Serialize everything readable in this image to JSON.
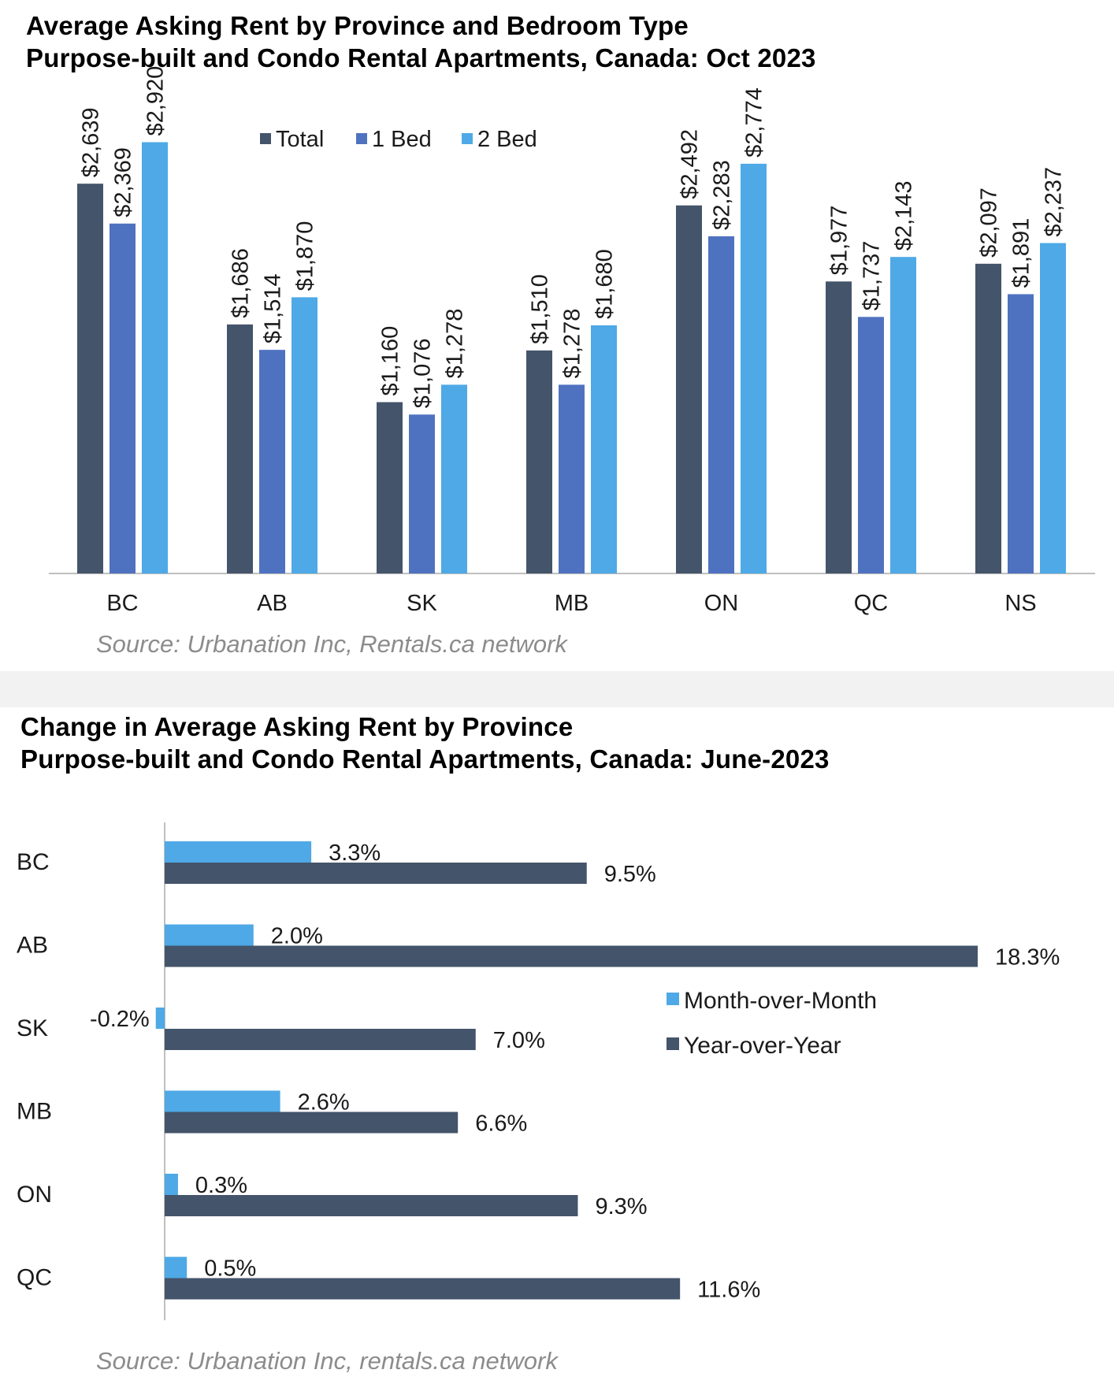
{
  "chart_data": [
    {
      "type": "bar",
      "title": "Average Asking Rent by Province and Bedroom Type",
      "subtitle": "Purpose-built and Condo Rental Apartments, Canada: Oct 2023",
      "source": "Source: Urbanation Inc, Rentals.ca network",
      "categories": [
        "BC",
        "AB",
        "SK",
        "MB",
        "ON",
        "QC",
        "NS"
      ],
      "series": [
        {
          "name": "Total",
          "color": "#44546a",
          "values": [
            2639,
            1686,
            1160,
            1510,
            2492,
            1977,
            2097
          ],
          "labels": [
            "$2,639",
            "$1,686",
            "$1,160",
            "$1,510",
            "$2,492",
            "$1,977",
            "$2,097"
          ]
        },
        {
          "name": "1 Bed",
          "color": "#4f72c0",
          "values": [
            2369,
            1514,
            1076,
            1278,
            2283,
            1737,
            1891
          ],
          "labels": [
            "$2,369",
            "$1,514",
            "$1,076",
            "$1,278",
            "$2,283",
            "$1,737",
            "$1,891"
          ]
        },
        {
          "name": "2 Bed",
          "color": "#4ea9e6",
          "values": [
            2920,
            1870,
            1278,
            1680,
            2774,
            2143,
            2237
          ],
          "labels": [
            "$2,920",
            "$1,870",
            "$1,278",
            "$1,680",
            "$2,774",
            "$2,143",
            "$2,237"
          ]
        }
      ],
      "ylim": [
        0,
        3200
      ],
      "legend": "top",
      "grid": false
    },
    {
      "type": "bar",
      "orientation": "horizontal",
      "title": "Change in Average Asking Rent by Province",
      "subtitle": "Purpose-built and Condo Rental Apartments, Canada: June-2023",
      "source": "Source: Urbanation Inc, rentals.ca network",
      "categories": [
        "BC",
        "AB",
        "SK",
        "MB",
        "ON",
        "QC"
      ],
      "series": [
        {
          "name": "Month-over-Month",
          "color": "#4ea9e6",
          "values": [
            3.3,
            2.0,
            -0.2,
            2.6,
            0.3,
            0.5
          ],
          "labels": [
            "3.3%",
            "2.0%",
            "-0.2%",
            "2.6%",
            "0.3%",
            "0.5%"
          ]
        },
        {
          "name": "Year-over-Year",
          "color": "#44546a",
          "values": [
            9.5,
            18.3,
            7.0,
            6.6,
            9.3,
            11.6
          ],
          "labels": [
            "9.5%",
            "18.3%",
            "7.0%",
            "6.6%",
            "9.3%",
            "11.6%"
          ]
        }
      ],
      "xlim": [
        -0.5,
        20
      ],
      "legend": "center-right",
      "grid": false
    }
  ]
}
